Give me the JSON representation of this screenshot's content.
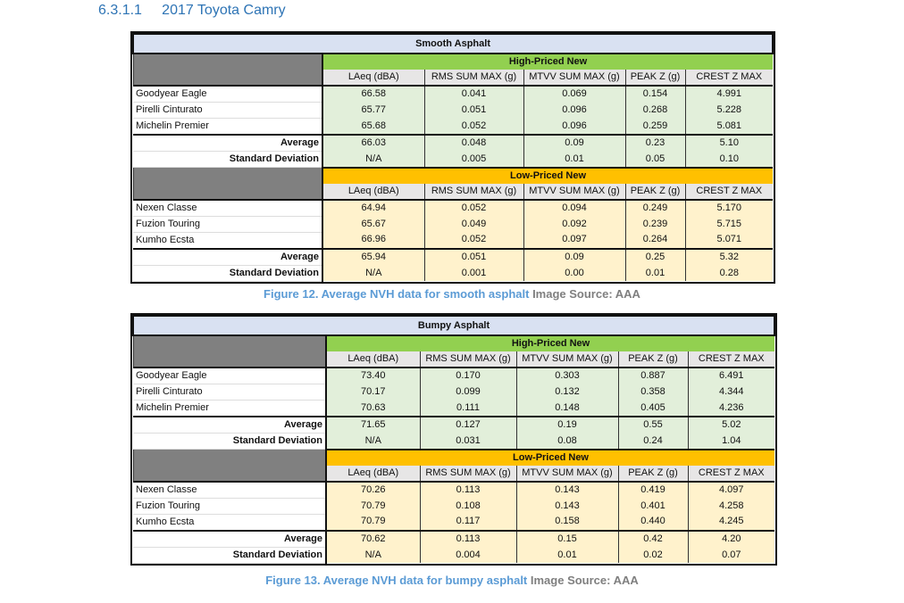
{
  "heading": {
    "number": "6.3.1.1",
    "title": "2017 Toyota Camry"
  },
  "colors": {
    "title_bg": "#d9e1f2",
    "high_priced": "#92d050",
    "low_priced": "#ffc000",
    "green_cells": "#e2efda",
    "yellow_cells": "#fff2cc",
    "caption": "#5b9bd5"
  },
  "columns": [
    "LAeq (dBA)",
    "RMS SUM MAX (g)",
    "MTVV SUM MAX (g)",
    "PEAK Z (g)",
    "CREST Z MAX"
  ],
  "tables": [
    {
      "title": "Smooth Asphalt",
      "groups": [
        {
          "label": "High-Priced New",
          "rows": [
            [
              "Goodyear Eagle",
              "66.58",
              "0.041",
              "0.069",
              "0.154",
              "4.991"
            ],
            [
              "Pirelli Cinturato",
              "65.77",
              "0.051",
              "0.096",
              "0.268",
              "5.228"
            ],
            [
              "Michelin Premier",
              "65.68",
              "0.052",
              "0.096",
              "0.259",
              "5.081"
            ]
          ],
          "stats": [
            [
              "Average",
              "66.03",
              "0.048",
              "0.09",
              "0.23",
              "5.10"
            ],
            [
              "Standard Deviation",
              "N/A",
              "0.005",
              "0.01",
              "0.05",
              "0.10"
            ]
          ]
        },
        {
          "label": "Low-Priced New",
          "rows": [
            [
              "Nexen Classe",
              "64.94",
              "0.052",
              "0.094",
              "0.249",
              "5.170"
            ],
            [
              "Fuzion Touring",
              "65.67",
              "0.049",
              "0.092",
              "0.239",
              "5.715"
            ],
            [
              "Kumho Ecsta",
              "66.96",
              "0.052",
              "0.097",
              "0.264",
              "5.071"
            ]
          ],
          "stats": [
            [
              "Average",
              "65.94",
              "0.051",
              "0.09",
              "0.25",
              "5.32"
            ],
            [
              "Standard Deviation",
              "N/A",
              "0.001",
              "0.00",
              "0.01",
              "0.28"
            ]
          ]
        }
      ],
      "caption": "Figure 12. Average NVH data for smooth asphalt",
      "source": "Image Source: AAA"
    },
    {
      "title": "Bumpy Asphalt",
      "groups": [
        {
          "label": "High-Priced New",
          "rows": [
            [
              "Goodyear Eagle",
              "73.40",
              "0.170",
              "0.303",
              "0.887",
              "6.491"
            ],
            [
              "Pirelli Cinturato",
              "70.17",
              "0.099",
              "0.132",
              "0.358",
              "4.344"
            ],
            [
              "Michelin Premier",
              "70.63",
              "0.111",
              "0.148",
              "0.405",
              "4.236"
            ]
          ],
          "stats": [
            [
              "Average",
              "71.65",
              "0.127",
              "0.19",
              "0.55",
              "5.02"
            ],
            [
              "Standard Deviation",
              "N/A",
              "0.031",
              "0.08",
              "0.24",
              "1.04"
            ]
          ]
        },
        {
          "label": "Low-Priced New",
          "rows": [
            [
              "Nexen Classe",
              "70.26",
              "0.113",
              "0.143",
              "0.419",
              "4.097"
            ],
            [
              "Fuzion Touring",
              "70.79",
              "0.108",
              "0.143",
              "0.401",
              "4.258"
            ],
            [
              "Kumho Ecsta",
              "70.79",
              "0.117",
              "0.158",
              "0.440",
              "4.245"
            ]
          ],
          "stats": [
            [
              "Average",
              "70.62",
              "0.113",
              "0.15",
              "0.42",
              "4.20"
            ],
            [
              "Standard Deviation",
              "N/A",
              "0.004",
              "0.01",
              "0.02",
              "0.07"
            ]
          ]
        }
      ],
      "caption": "Figure 13. Average NVH data for bumpy asphalt",
      "source": "Image Source: AAA"
    }
  ]
}
